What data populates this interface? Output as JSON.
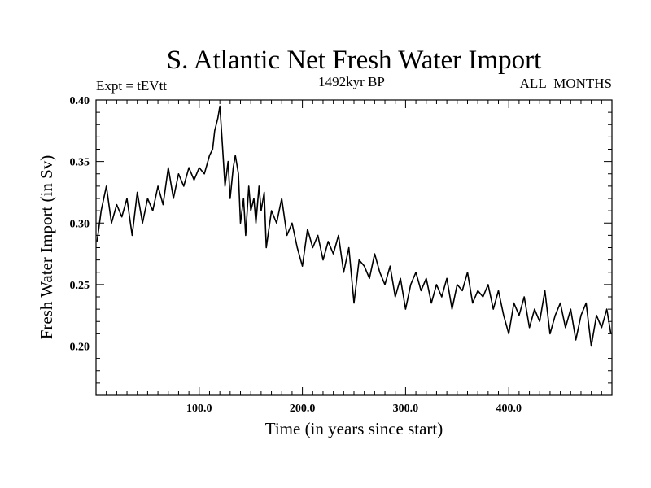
{
  "chart_data": {
    "type": "line",
    "title": "S. Atlantic Net Fresh Water Import",
    "subtitle_left": "Expt = tEVtt",
    "subtitle_center": "1492kyr BP",
    "subtitle_right": "ALL_MONTHS",
    "xlabel": "Time (in years since start)",
    "ylabel": "Fresh Water Import (in Sv)",
    "xlim": [
      0,
      500
    ],
    "ylim": [
      0.16,
      0.4
    ],
    "xticks": [
      100,
      200,
      300,
      400
    ],
    "xtick_labels": [
      "100.0",
      "200.0",
      "300.0",
      "400.0"
    ],
    "yticks": [
      0.2,
      0.25,
      0.3,
      0.35,
      0.4
    ],
    "ytick_labels": [
      "0.20",
      "0.25",
      "0.30",
      "0.35",
      "0.40"
    ],
    "grid": false,
    "series": [
      {
        "name": "Fresh Water Import",
        "color": "#000000",
        "x": [
          1,
          5,
          10,
          15,
          20,
          25,
          30,
          35,
          40,
          45,
          50,
          55,
          60,
          65,
          70,
          75,
          80,
          85,
          90,
          95,
          100,
          105,
          110,
          113,
          115,
          118,
          120,
          122,
          125,
          128,
          130,
          133,
          135,
          138,
          140,
          143,
          145,
          148,
          150,
          153,
          155,
          158,
          160,
          163,
          165,
          170,
          175,
          180,
          185,
          190,
          195,
          200,
          205,
          210,
          215,
          220,
          225,
          230,
          235,
          240,
          245,
          250,
          255,
          260,
          265,
          270,
          275,
          280,
          285,
          290,
          295,
          300,
          305,
          310,
          315,
          320,
          325,
          330,
          335,
          340,
          345,
          350,
          355,
          360,
          365,
          370,
          375,
          380,
          385,
          390,
          395,
          400,
          405,
          410,
          415,
          420,
          425,
          430,
          435,
          440,
          445,
          450,
          455,
          460,
          465,
          470,
          475,
          480,
          485,
          490,
          495,
          499
        ],
        "values": [
          0.285,
          0.31,
          0.33,
          0.3,
          0.315,
          0.305,
          0.32,
          0.29,
          0.325,
          0.3,
          0.32,
          0.31,
          0.33,
          0.315,
          0.345,
          0.32,
          0.34,
          0.33,
          0.345,
          0.335,
          0.345,
          0.34,
          0.355,
          0.36,
          0.375,
          0.385,
          0.395,
          0.37,
          0.33,
          0.35,
          0.32,
          0.345,
          0.355,
          0.34,
          0.3,
          0.32,
          0.29,
          0.33,
          0.31,
          0.32,
          0.3,
          0.33,
          0.31,
          0.325,
          0.28,
          0.31,
          0.3,
          0.32,
          0.29,
          0.3,
          0.28,
          0.265,
          0.295,
          0.28,
          0.29,
          0.27,
          0.285,
          0.275,
          0.29,
          0.26,
          0.28,
          0.235,
          0.27,
          0.265,
          0.255,
          0.275,
          0.26,
          0.25,
          0.265,
          0.24,
          0.255,
          0.23,
          0.25,
          0.26,
          0.245,
          0.255,
          0.235,
          0.25,
          0.24,
          0.255,
          0.23,
          0.25,
          0.245,
          0.26,
          0.235,
          0.245,
          0.24,
          0.25,
          0.23,
          0.245,
          0.225,
          0.21,
          0.235,
          0.225,
          0.24,
          0.215,
          0.23,
          0.22,
          0.245,
          0.21,
          0.225,
          0.235,
          0.215,
          0.23,
          0.205,
          0.225,
          0.235,
          0.2,
          0.225,
          0.215,
          0.23,
          0.21
        ]
      }
    ]
  }
}
